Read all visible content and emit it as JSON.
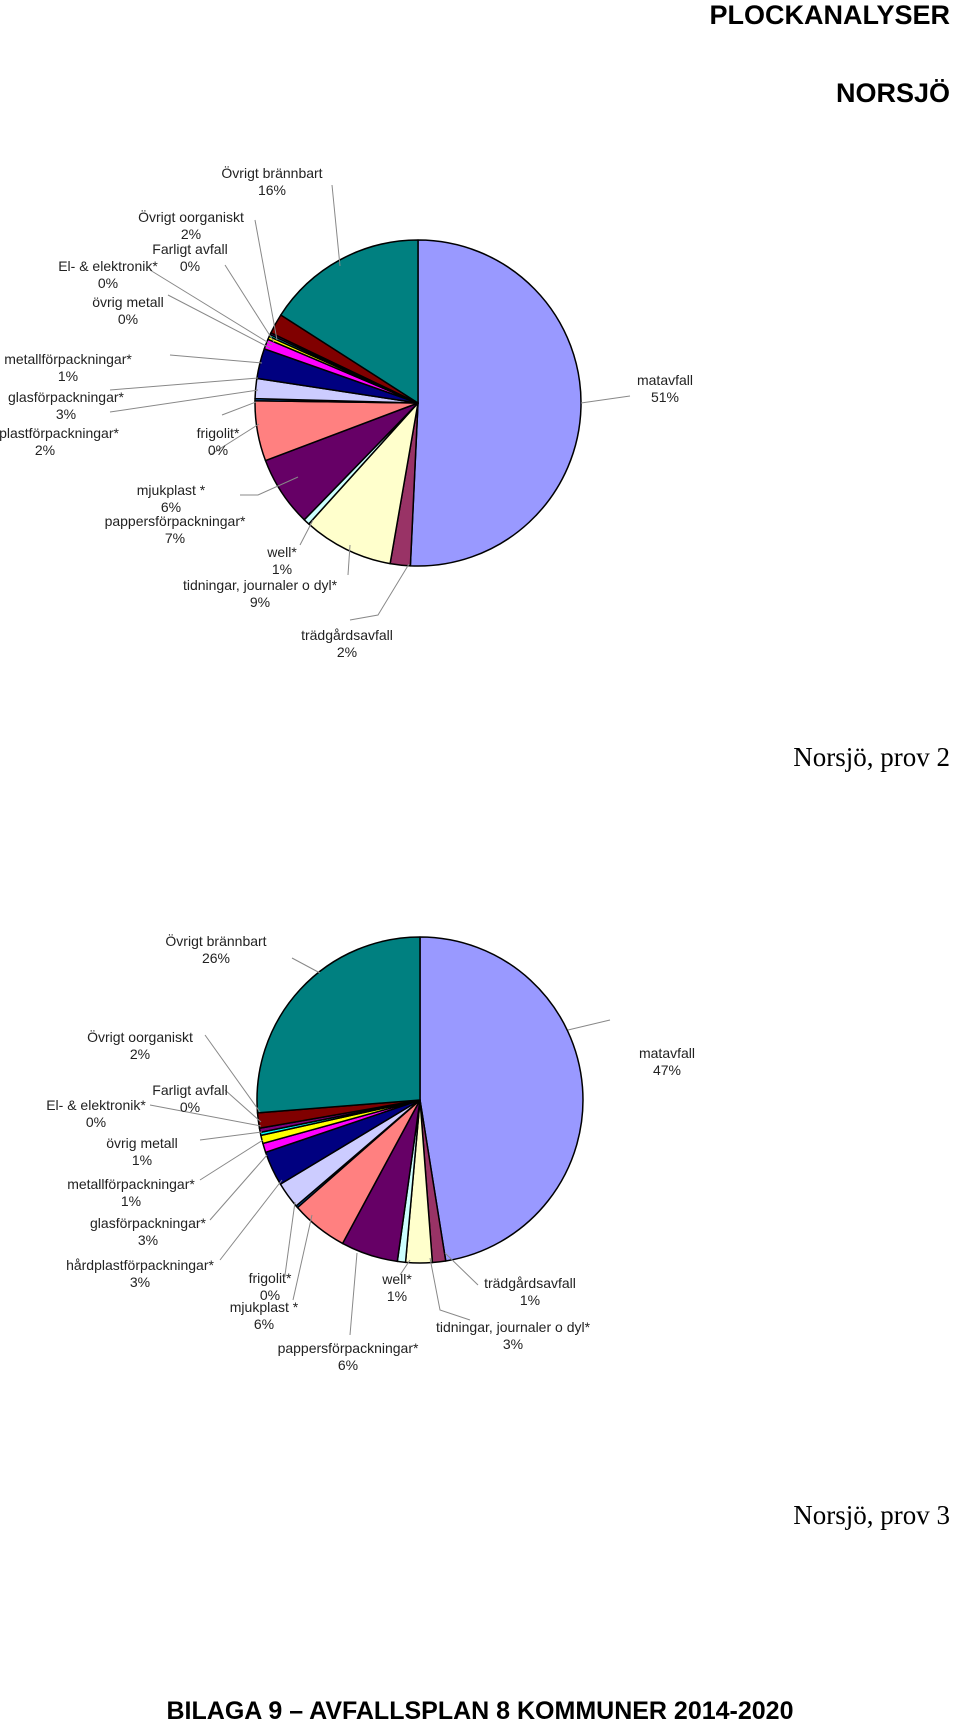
{
  "page": {
    "title": "PLOCKANALYSER",
    "subtitle": "NORSJÖ",
    "footer": "BILAGA 9 – AVFALLSPLAN 8 KOMMUNER 2014-2020"
  },
  "chart_data": [
    {
      "type": "pie",
      "title": "Norsjö, prov 2",
      "slices": [
        {
          "name": "matavfall",
          "label": "51%",
          "value": 51,
          "color": "#9999ff"
        },
        {
          "name": "trädgårdsavfall",
          "label": "2%",
          "value": 2,
          "color": "#993366"
        },
        {
          "name": "tidningar, journaler o dyl*",
          "label": "9%",
          "value": 9,
          "color": "#ffffcc"
        },
        {
          "name": "well*",
          "label": "1%",
          "value": 0.6,
          "color": "#ccffff"
        },
        {
          "name": "pappersförpackningar*",
          "label": "7%",
          "value": 7,
          "color": "#660066"
        },
        {
          "name": "mjukplast *",
          "label": "6%",
          "value": 6,
          "color": "#ff8080"
        },
        {
          "name": "frigolit*",
          "label": "0%",
          "value": 0.2,
          "color": "#0066cc"
        },
        {
          "name": "hårdplastförpackningar*",
          "label": "2%",
          "value": 2,
          "color": "#ccccff"
        },
        {
          "name": "glasförpackningar*",
          "label": "3%",
          "value": 3,
          "color": "#000080"
        },
        {
          "name": "metallförpackningar*",
          "label": "1%",
          "value": 1,
          "color": "#ff00ff"
        },
        {
          "name": "övrig metall",
          "label": "0%",
          "value": 0.3,
          "color": "#ffff00"
        },
        {
          "name": "El- & elektronik*",
          "label": "0%",
          "value": 0.2,
          "color": "#00ffff"
        },
        {
          "name": "Farligt avfall",
          "label": "0%",
          "value": 0.2,
          "color": "#800080"
        },
        {
          "name": "Övrigt oorganiskt",
          "label": "2%",
          "value": 2,
          "color": "#800000"
        },
        {
          "name": "Övrigt brännbart",
          "label": "16%",
          "value": 16,
          "color": "#008080"
        }
      ]
    },
    {
      "type": "pie",
      "title": "Norsjö, prov 3",
      "slices": [
        {
          "name": "matavfall",
          "label": "47%",
          "value": 47,
          "color": "#9999ff"
        },
        {
          "name": "trädgårdsavfall",
          "label": "1%",
          "value": 1.3,
          "color": "#993366"
        },
        {
          "name": "tidningar, journaler o dyl*",
          "label": "3%",
          "value": 2.6,
          "color": "#ffffcc"
        },
        {
          "name": "well*",
          "label": "1%",
          "value": 0.8,
          "color": "#ccffff"
        },
        {
          "name": "pappersförpackningar*",
          "label": "6%",
          "value": 5.6,
          "color": "#660066"
        },
        {
          "name": "mjukplast *",
          "label": "6%",
          "value": 5.6,
          "color": "#ff8080"
        },
        {
          "name": "frigolit*",
          "label": "0%",
          "value": 0.2,
          "color": "#0066cc"
        },
        {
          "name": "hårdplastförpackningar*",
          "label": "3%",
          "value": 2.6,
          "color": "#ccccff"
        },
        {
          "name": "glasförpackningar*",
          "label": "3%",
          "value": 3.4,
          "color": "#000080"
        },
        {
          "name": "metallförpackningar*",
          "label": "1%",
          "value": 0.9,
          "color": "#ff00ff"
        },
        {
          "name": "övrig metall",
          "label": "1%",
          "value": 0.8,
          "color": "#ffff00"
        },
        {
          "name": "El- & elektronik*",
          "label": "0%",
          "value": 0.3,
          "color": "#00ffff"
        },
        {
          "name": "Farligt avfall",
          "label": "0%",
          "value": 0.4,
          "color": "#800080"
        },
        {
          "name": "Övrigt oorganiskt",
          "label": "2%",
          "value": 1.5,
          "color": "#800000"
        },
        {
          "name": "Övrigt brännbart",
          "label": "26%",
          "value": 26,
          "color": "#008080"
        }
      ]
    }
  ]
}
